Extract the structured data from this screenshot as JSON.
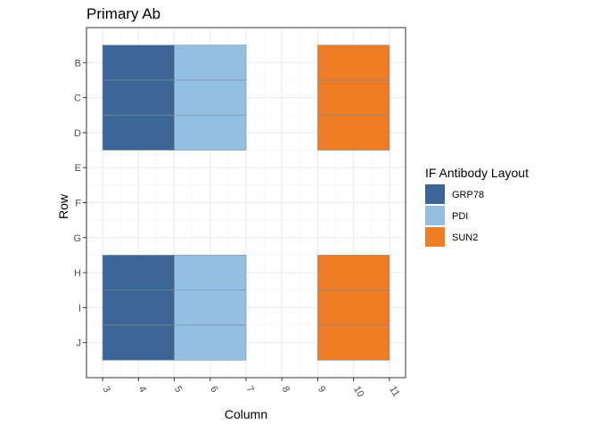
{
  "chart_data": {
    "type": "heatmap",
    "title": "Primary Ab",
    "xlabel": "Column",
    "ylabel": "Row",
    "x_ticks": [
      "3",
      "4",
      "5",
      "6",
      "7",
      "8",
      "9",
      "10",
      "11"
    ],
    "y_ticks": [
      "B",
      "C",
      "D",
      "E",
      "F",
      "G",
      "H",
      "I",
      "J"
    ],
    "xlim": [
      2.55,
      11.45
    ],
    "ylim_rows": [
      "A",
      "K"
    ],
    "grid": true,
    "legend": {
      "title": "IF Antibody Layout",
      "placement": "right",
      "entries": [
        {
          "name": "GRP78",
          "color": "#3D6698"
        },
        {
          "name": "PDI",
          "color": "#93BFE3"
        },
        {
          "name": "SUN2",
          "color": "#EE7D26"
        }
      ]
    },
    "tiles": [
      {
        "antibody": "GRP78",
        "row": "B",
        "col_start": 3,
        "col_end": 5
      },
      {
        "antibody": "GRP78",
        "row": "C",
        "col_start": 3,
        "col_end": 5
      },
      {
        "antibody": "GRP78",
        "row": "D",
        "col_start": 3,
        "col_end": 5
      },
      {
        "antibody": "PDI",
        "row": "B",
        "col_start": 5,
        "col_end": 7
      },
      {
        "antibody": "PDI",
        "row": "C",
        "col_start": 5,
        "col_end": 7
      },
      {
        "antibody": "PDI",
        "row": "D",
        "col_start": 5,
        "col_end": 7
      },
      {
        "antibody": "SUN2",
        "row": "B",
        "col_start": 9,
        "col_end": 11
      },
      {
        "antibody": "SUN2",
        "row": "C",
        "col_start": 9,
        "col_end": 11
      },
      {
        "antibody": "SUN2",
        "row": "D",
        "col_start": 9,
        "col_end": 11
      },
      {
        "antibody": "GRP78",
        "row": "H",
        "col_start": 3,
        "col_end": 5
      },
      {
        "antibody": "GRP78",
        "row": "I",
        "col_start": 3,
        "col_end": 5
      },
      {
        "antibody": "GRP78",
        "row": "J",
        "col_start": 3,
        "col_end": 5
      },
      {
        "antibody": "PDI",
        "row": "H",
        "col_start": 5,
        "col_end": 7
      },
      {
        "antibody": "PDI",
        "row": "I",
        "col_start": 5,
        "col_end": 7
      },
      {
        "antibody": "PDI",
        "row": "J",
        "col_start": 5,
        "col_end": 7
      },
      {
        "antibody": "SUN2",
        "row": "H",
        "col_start": 9,
        "col_end": 11
      },
      {
        "antibody": "SUN2",
        "row": "I",
        "col_start": 9,
        "col_end": 11
      },
      {
        "antibody": "SUN2",
        "row": "J",
        "col_start": 9,
        "col_end": 11
      }
    ]
  }
}
